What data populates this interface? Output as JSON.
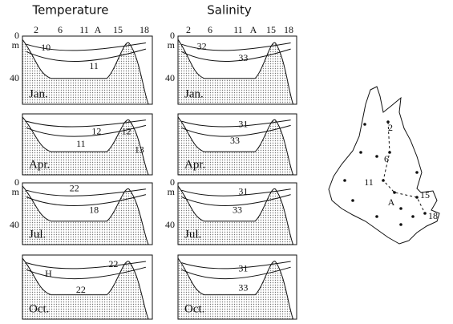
{
  "titles": [
    "Temperature",
    "Salinity"
  ],
  "station_labels": [
    "2",
    "6",
    "11",
    "A",
    "15",
    "18"
  ],
  "depth_labels": [
    "0",
    "m",
    "40"
  ],
  "panels": [
    {
      "month": "Jan.",
      "contour_labels": [
        "10",
        "11"
      ]
    },
    {
      "month": "Apr.",
      "contour_labels": [
        "11",
        "12",
        "12",
        "13"
      ]
    },
    {
      "month": "Jul.",
      "contour_labels": [
        "22",
        "18"
      ]
    },
    {
      "month": "Oct.",
      "contour_labels": [
        "H",
        "22",
        "22"
      ]
    },
    {
      "month": "Jan.",
      "contour_labels": [
        "32",
        "33"
      ]
    },
    {
      "month": "Apr.",
      "contour_labels": [
        "31",
        "33"
      ]
    },
    {
      "month": "Jul.",
      "contour_labels": [
        "31",
        "33"
      ]
    },
    {
      "month": "Oct.",
      "contour_labels": [
        "31",
        "33"
      ]
    }
  ],
  "map": {
    "stations": [
      "2",
      "6",
      "11",
      "A",
      "15",
      "18"
    ]
  }
}
